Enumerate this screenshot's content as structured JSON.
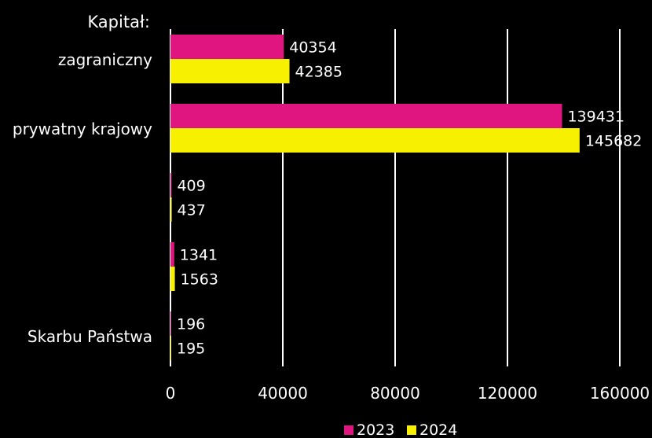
{
  "chart_data": {
    "type": "bar",
    "orientation": "horizontal",
    "title": "Kapitał:",
    "categories": [
      "zagraniczny",
      "prywatny krajowy",
      "",
      "",
      "Skarbu Państwa"
    ],
    "series": [
      {
        "name": "2023",
        "color": "#e0157f",
        "values": [
          40354,
          139431,
          409,
          1341,
          196
        ]
      },
      {
        "name": "2024",
        "color": "#f7f000",
        "values": [
          42385,
          145682,
          437,
          1563,
          195
        ]
      }
    ],
    "xlim": [
      0,
      160000
    ],
    "x_ticks": [
      0,
      40000,
      80000,
      120000,
      160000
    ],
    "x_tick_labels": [
      "0",
      "40000",
      "80000",
      "120000",
      "160000"
    ],
    "grid": true,
    "legend_position": "bottom",
    "data_labels": true
  }
}
